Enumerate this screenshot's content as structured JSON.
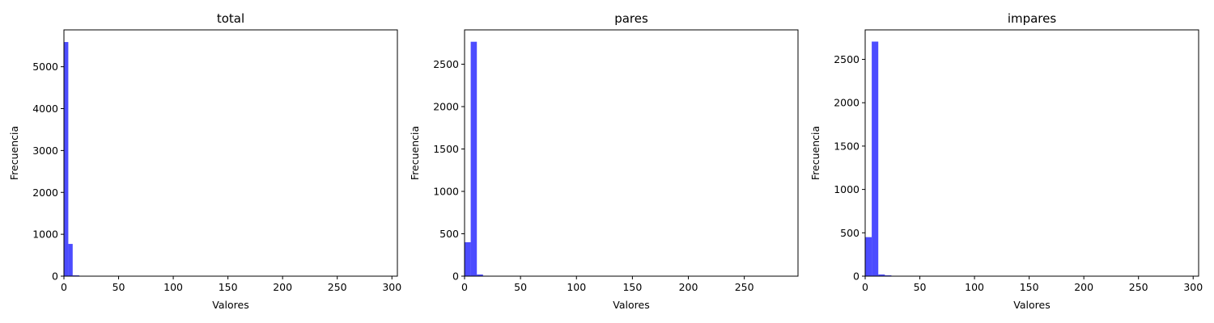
{
  "chart_data": [
    {
      "type": "bar",
      "title": "total",
      "xlabel": "Valores",
      "ylabel": "Frecuencia",
      "xlim": [
        0,
        305
      ],
      "ylim": [
        0,
        5880
      ],
      "xticks": [
        0,
        50,
        100,
        150,
        200,
        250,
        300
      ],
      "yticks": [
        0,
        1000,
        2000,
        3000,
        4000,
        5000
      ],
      "bars": [
        {
          "x0": 0,
          "x1": 4,
          "value": 5590
        },
        {
          "x0": 4,
          "x1": 8,
          "value": 770
        },
        {
          "x0": 8,
          "x1": 14,
          "value": 20
        },
        {
          "x0": 14,
          "x1": 20,
          "value": 8
        }
      ]
    },
    {
      "type": "bar",
      "title": "pares",
      "xlabel": "Valores",
      "ylabel": "Frecuencia",
      "xlim": [
        0,
        298
      ],
      "ylim": [
        0,
        2905
      ],
      "xticks": [
        0,
        50,
        100,
        150,
        200,
        250
      ],
      "yticks": [
        0,
        500,
        1000,
        1500,
        2000,
        2500
      ],
      "bars": [
        {
          "x0": 0,
          "x1": 5.5,
          "value": 400
        },
        {
          "x0": 5.5,
          "x1": 11,
          "value": 2765
        },
        {
          "x0": 11,
          "x1": 16.5,
          "value": 20
        },
        {
          "x0": 16.5,
          "x1": 22,
          "value": 5
        }
      ]
    },
    {
      "type": "bar",
      "title": "impares",
      "xlabel": "Valores",
      "ylabel": "Frecuencia",
      "xlim": [
        0,
        305
      ],
      "ylim": [
        0,
        2840
      ],
      "xticks": [
        0,
        50,
        100,
        150,
        200,
        250,
        300
      ],
      "yticks": [
        0,
        500,
        1000,
        1500,
        2000,
        2500
      ],
      "bars": [
        {
          "x0": 0,
          "x1": 6,
          "value": 450
        },
        {
          "x0": 6,
          "x1": 12,
          "value": 2705
        },
        {
          "x0": 12,
          "x1": 18,
          "value": 20
        },
        {
          "x0": 18,
          "x1": 24,
          "value": 10
        }
      ]
    }
  ],
  "colors": {
    "bar": "#0000ff",
    "bar_opacity": 0.7,
    "axes": "#000000"
  }
}
